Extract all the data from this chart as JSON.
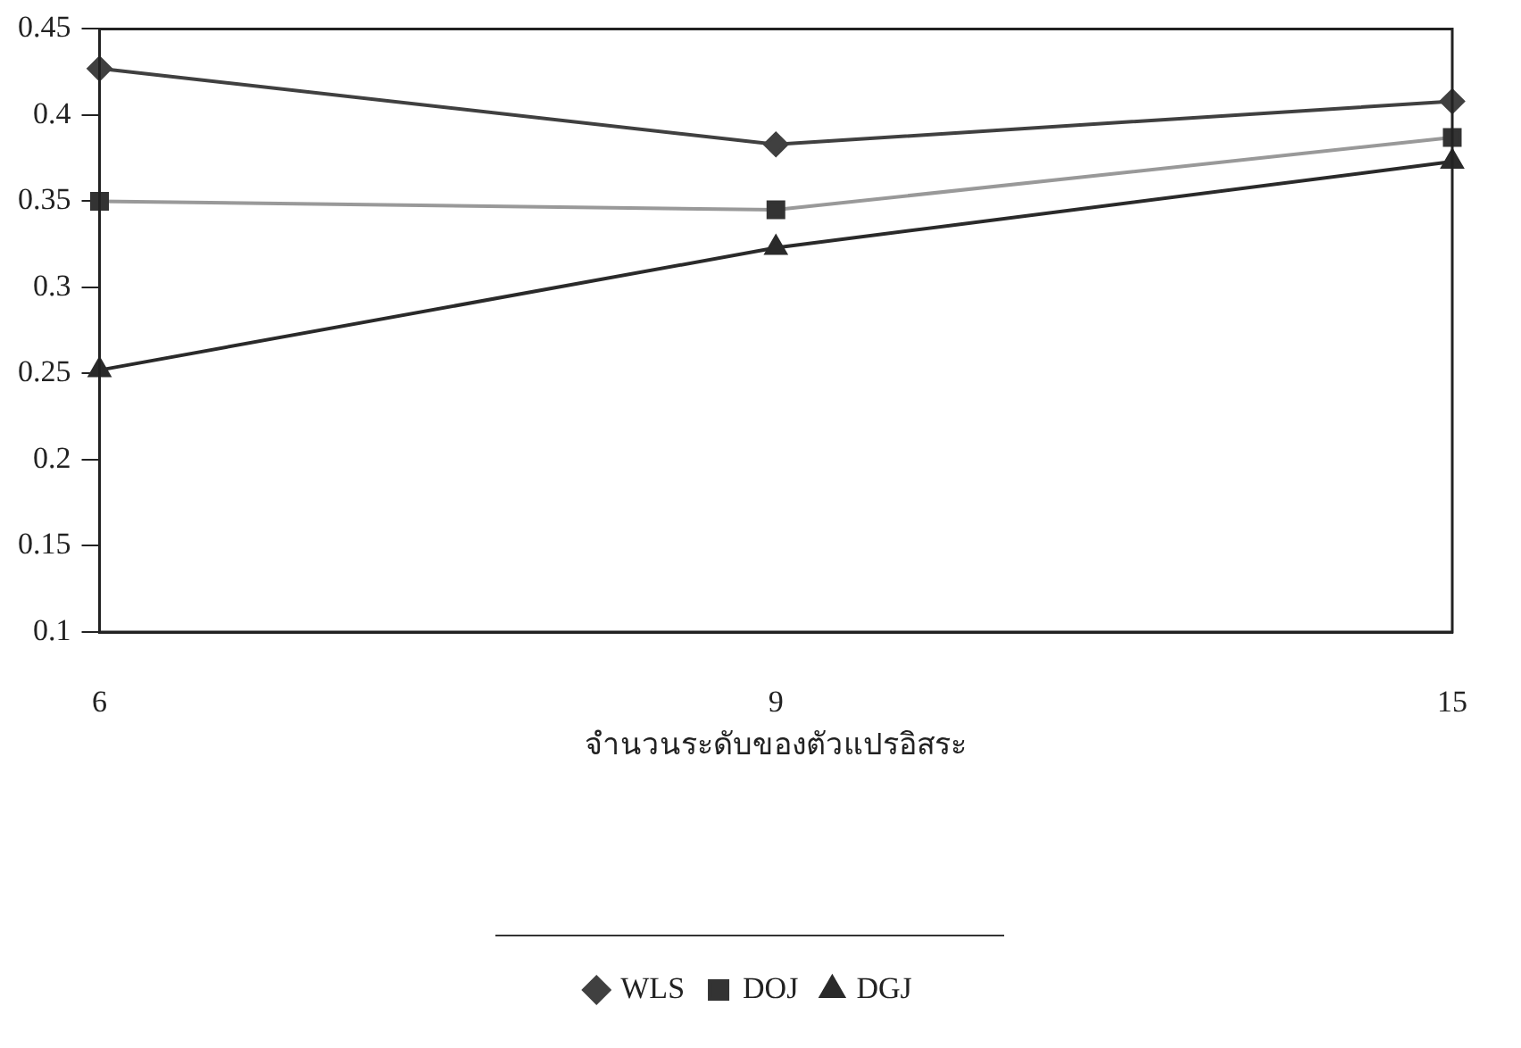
{
  "chart_data": {
    "type": "line",
    "xlabel": "จำนวนระดับของตัวแปรอิสระ",
    "categories": [
      "6",
      "9",
      "15"
    ],
    "series": [
      {
        "name": "WLS",
        "color": "#404040",
        "marker": "diamond",
        "values": [
          0.427,
          0.383,
          0.408
        ]
      },
      {
        "name": "DOJ",
        "color": "#999999",
        "marker": "square",
        "values": [
          0.35,
          0.345,
          0.387
        ]
      },
      {
        "name": "DGJ",
        "color": "#2a2a2a",
        "marker": "triangle",
        "values": [
          0.252,
          0.323,
          0.373
        ]
      }
    ],
    "ylim": [
      0.1,
      0.45
    ],
    "yticks": [
      0.1,
      0.15,
      0.2,
      0.25,
      0.3,
      0.35,
      0.4,
      0.45
    ],
    "grid": false,
    "legend": "bottom",
    "line_style": "solid"
  }
}
